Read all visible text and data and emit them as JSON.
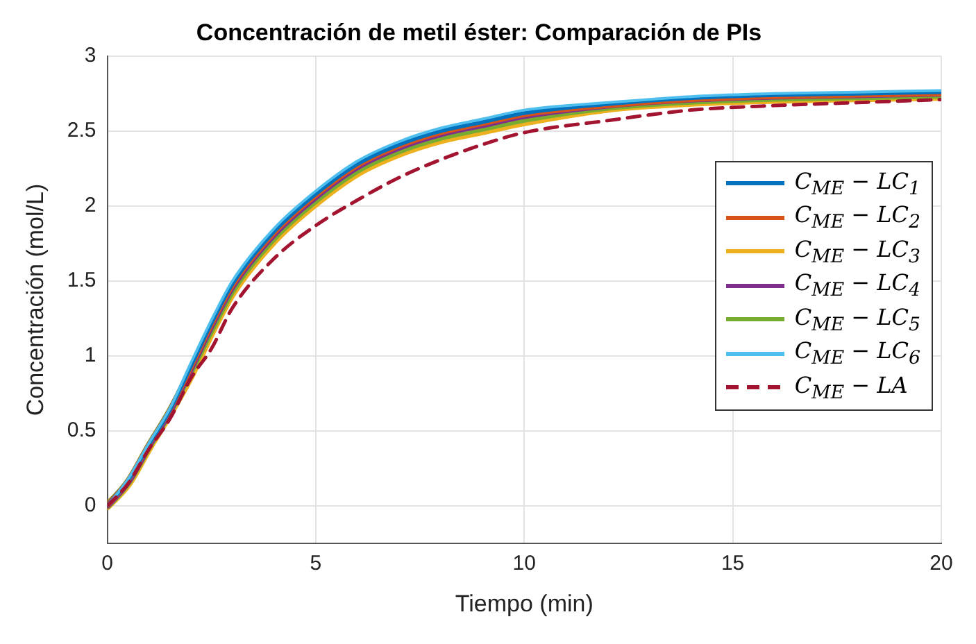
{
  "chart_data": {
    "type": "line",
    "title": "Concentración de metil éster: Comparación de PIs",
    "xlabel": "Tiempo (min)",
    "ylabel": "Concentración (mol/L)",
    "x": [
      0,
      0.5,
      1,
      1.5,
      2,
      2.5,
      3,
      4,
      5,
      6,
      7,
      8,
      9,
      10,
      12,
      14,
      16,
      18,
      20
    ],
    "series": [
      {
        "name": "C$_{ME}$ − LC$_{1}$",
        "color": "#0072bd",
        "values": [
          0,
          0.17,
          0.41,
          0.64,
          0.93,
          1.22,
          1.48,
          1.83,
          2.08,
          2.28,
          2.41,
          2.5,
          2.56,
          2.62,
          2.68,
          2.72,
          2.74,
          2.75,
          2.76
        ]
      },
      {
        "name": "C$_{ME}$ − LC$_{2}$",
        "color": "#d95319",
        "values": [
          0,
          0.17,
          0.41,
          0.64,
          0.92,
          1.21,
          1.47,
          1.82,
          2.07,
          2.27,
          2.4,
          2.49,
          2.55,
          2.61,
          2.67,
          2.71,
          2.73,
          2.74,
          2.75
        ]
      },
      {
        "name": "C$_{ME}$ − LC$_{3}$",
        "color": "#edb120",
        "values": [
          0,
          0.15,
          0.39,
          0.62,
          0.87,
          1.16,
          1.42,
          1.77,
          2.02,
          2.22,
          2.35,
          2.44,
          2.5,
          2.56,
          2.65,
          2.69,
          2.71,
          2.72,
          2.73
        ]
      },
      {
        "name": "C$_{ME}$ − LC$_{4}$",
        "color": "#7e2f8e",
        "values": [
          0,
          0.16,
          0.4,
          0.63,
          0.91,
          1.2,
          1.46,
          1.81,
          2.06,
          2.26,
          2.39,
          2.48,
          2.54,
          2.6,
          2.67,
          2.71,
          2.73,
          2.74,
          2.75
        ]
      },
      {
        "name": "C$_{ME}$ − LC$_{5}$",
        "color": "#77ac30",
        "values": [
          0,
          0.16,
          0.4,
          0.63,
          0.9,
          1.18,
          1.44,
          1.79,
          2.04,
          2.24,
          2.37,
          2.46,
          2.52,
          2.58,
          2.66,
          2.7,
          2.72,
          2.73,
          2.74
        ]
      },
      {
        "name": "C$_{ME}$ − LC$_{6}$",
        "color": "#4dbeee",
        "values": [
          0,
          0.18,
          0.42,
          0.65,
          0.95,
          1.24,
          1.5,
          1.85,
          2.1,
          2.3,
          2.43,
          2.52,
          2.58,
          2.64,
          2.69,
          2.73,
          2.75,
          2.76,
          2.77
        ]
      },
      {
        "name": "C$_{ME}$ − LA",
        "color": "#a2142f",
        "line_style": "dashed",
        "values": [
          0,
          0.15,
          0.38,
          0.58,
          0.85,
          1.05,
          1.32,
          1.65,
          1.87,
          2.04,
          2.19,
          2.31,
          2.41,
          2.49,
          2.57,
          2.64,
          2.67,
          2.69,
          2.71
        ]
      }
    ],
    "xlim": [
      0,
      20
    ],
    "xticks": [
      0,
      5,
      10,
      15,
      20
    ],
    "ylim": [
      -0.25,
      3
    ],
    "yticks": [
      0,
      0.5,
      1,
      1.5,
      2,
      2.5,
      3
    ],
    "grid": true,
    "legend": "right",
    "marker": "none",
    "line_style": "solid"
  }
}
